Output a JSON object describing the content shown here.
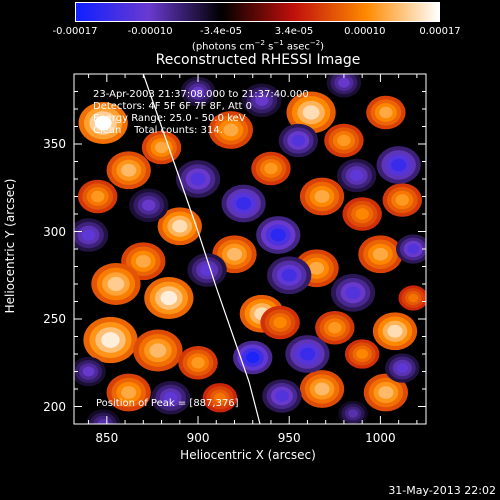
{
  "chart_data": {
    "type": "heatmap",
    "title": "Reconstructed RHESSI Image",
    "xlabel": "Heliocentric X (arcsec)",
    "ylabel": "Heliocentric Y (arcsec)",
    "xlim": [
      832,
      1025
    ],
    "ylim": [
      190,
      390
    ],
    "x_ticks": [
      850,
      900,
      950,
      1000
    ],
    "y_ticks": [
      200,
      250,
      300,
      350
    ],
    "colorbar": {
      "ticks": [
        "-0.00017",
        "-0.00010",
        "-3.4e-05",
        "3.4e-05",
        "0.00010",
        "0.00017"
      ],
      "unit_label": "(photons cm",
      "range": [
        -0.00017,
        0.00017
      ],
      "colors": [
        "#1020ff",
        "#6a3ad0",
        "#000000",
        "#c0100c",
        "#ff8a00",
        "#ffffff"
      ]
    },
    "annotations": [
      "23-Apr-2003 21:37:08.000 to 21:37:40.000",
      "Detectors: 4F 5F 6F 7F 8F, Att 0",
      "Energy Range: 25.0 - 50.0 keV",
      "Clean    Total counts: 314."
    ],
    "peak_label": "Position of Peak = [887,376]",
    "peak": [
      887,
      376
    ],
    "limb_curve": [
      [
        870,
        390
      ],
      [
        880,
        360
      ],
      [
        890,
        330
      ],
      [
        900,
        300
      ],
      [
        910,
        268
      ],
      [
        920,
        238
      ],
      [
        928,
        214
      ],
      [
        934,
        190
      ]
    ],
    "blobs": [
      {
        "x": 848,
        "y": 362,
        "v": 0.00017,
        "r": 10
      },
      {
        "x": 862,
        "y": 335,
        "v": 0.00013,
        "r": 9
      },
      {
        "x": 880,
        "y": 348,
        "v": 0.00012,
        "r": 8
      },
      {
        "x": 845,
        "y": 320,
        "v": 0.00011,
        "r": 8
      },
      {
        "x": 890,
        "y": 303,
        "v": 0.00015,
        "r": 9
      },
      {
        "x": 870,
        "y": 283,
        "v": 0.00012,
        "r": 9
      },
      {
        "x": 855,
        "y": 270,
        "v": 0.00014,
        "r": 10
      },
      {
        "x": 884,
        "y": 262,
        "v": 0.00016,
        "r": 10
      },
      {
        "x": 852,
        "y": 238,
        "v": 0.00016,
        "r": 11
      },
      {
        "x": 878,
        "y": 232,
        "v": 0.00013,
        "r": 10
      },
      {
        "x": 900,
        "y": 225,
        "v": 0.00011,
        "r": 8
      },
      {
        "x": 862,
        "y": 208,
        "v": 0.00012,
        "r": 9
      },
      {
        "x": 912,
        "y": 205,
        "v": 9e-05,
        "r": 7
      },
      {
        "x": 920,
        "y": 287,
        "v": 0.00013,
        "r": 9
      },
      {
        "x": 935,
        "y": 253,
        "v": 0.00015,
        "r": 9
      },
      {
        "x": 918,
        "y": 358,
        "v": 0.00012,
        "r": 9
      },
      {
        "x": 940,
        "y": 336,
        "v": 0.00011,
        "r": 8
      },
      {
        "x": 962,
        "y": 368,
        "v": 0.00015,
        "r": 10
      },
      {
        "x": 980,
        "y": 352,
        "v": 0.00011,
        "r": 8
      },
      {
        "x": 1003,
        "y": 368,
        "v": 0.00012,
        "r": 8
      },
      {
        "x": 968,
        "y": 320,
        "v": 0.00012,
        "r": 9
      },
      {
        "x": 990,
        "y": 310,
        "v": 0.0001,
        "r": 8
      },
      {
        "x": 1012,
        "y": 318,
        "v": 0.00011,
        "r": 8
      },
      {
        "x": 1000,
        "y": 287,
        "v": 0.00012,
        "r": 9
      },
      {
        "x": 965,
        "y": 279,
        "v": 0.00012,
        "r": 9
      },
      {
        "x": 945,
        "y": 248,
        "v": 0.0001,
        "r": 8
      },
      {
        "x": 975,
        "y": 245,
        "v": 0.00011,
        "r": 8
      },
      {
        "x": 1008,
        "y": 243,
        "v": 0.00015,
        "r": 9
      },
      {
        "x": 990,
        "y": 230,
        "v": 0.0001,
        "r": 7
      },
      {
        "x": 968,
        "y": 210,
        "v": 0.00013,
        "r": 9
      },
      {
        "x": 1003,
        "y": 208,
        "v": 0.00013,
        "r": 9
      },
      {
        "x": 1018,
        "y": 262,
        "v": 9e-05,
        "r": 6
      },
      {
        "x": 925,
        "y": 316,
        "v": -0.00014,
        "r": 9
      },
      {
        "x": 900,
        "y": 330,
        "v": -0.00012,
        "r": 9
      },
      {
        "x": 873,
        "y": 315,
        "v": -0.0001,
        "r": 8
      },
      {
        "x": 905,
        "y": 278,
        "v": -0.00011,
        "r": 8
      },
      {
        "x": 944,
        "y": 298,
        "v": -0.00015,
        "r": 9
      },
      {
        "x": 950,
        "y": 275,
        "v": -0.00013,
        "r": 9
      },
      {
        "x": 985,
        "y": 265,
        "v": -0.00012,
        "r": 9
      },
      {
        "x": 960,
        "y": 230,
        "v": -0.00014,
        "r": 9
      },
      {
        "x": 930,
        "y": 228,
        "v": -0.00016,
        "r": 8
      },
      {
        "x": 946,
        "y": 206,
        "v": -0.00012,
        "r": 8
      },
      {
        "x": 885,
        "y": 205,
        "v": -0.00011,
        "r": 8
      },
      {
        "x": 840,
        "y": 220,
        "v": -0.0001,
        "r": 7
      },
      {
        "x": 840,
        "y": 298,
        "v": -0.00011,
        "r": 8
      },
      {
        "x": 1010,
        "y": 338,
        "v": -0.00014,
        "r": 9
      },
      {
        "x": 987,
        "y": 332,
        "v": -0.00011,
        "r": 8
      },
      {
        "x": 955,
        "y": 352,
        "v": -0.00012,
        "r": 8
      },
      {
        "x": 935,
        "y": 375,
        "v": -0.0001,
        "r": 8
      },
      {
        "x": 1018,
        "y": 290,
        "v": -0.00012,
        "r": 7
      },
      {
        "x": 980,
        "y": 385,
        "v": -0.0001,
        "r": 7
      },
      {
        "x": 900,
        "y": 380,
        "v": -0.0001,
        "r": 7
      },
      {
        "x": 1012,
        "y": 222,
        "v": -0.00011,
        "r": 7
      },
      {
        "x": 848,
        "y": 190,
        "v": -9e-05,
        "r": 7
      },
      {
        "x": 985,
        "y": 196,
        "v": -9e-05,
        "r": 6
      }
    ]
  },
  "footer": "31-May-2013 22:02"
}
